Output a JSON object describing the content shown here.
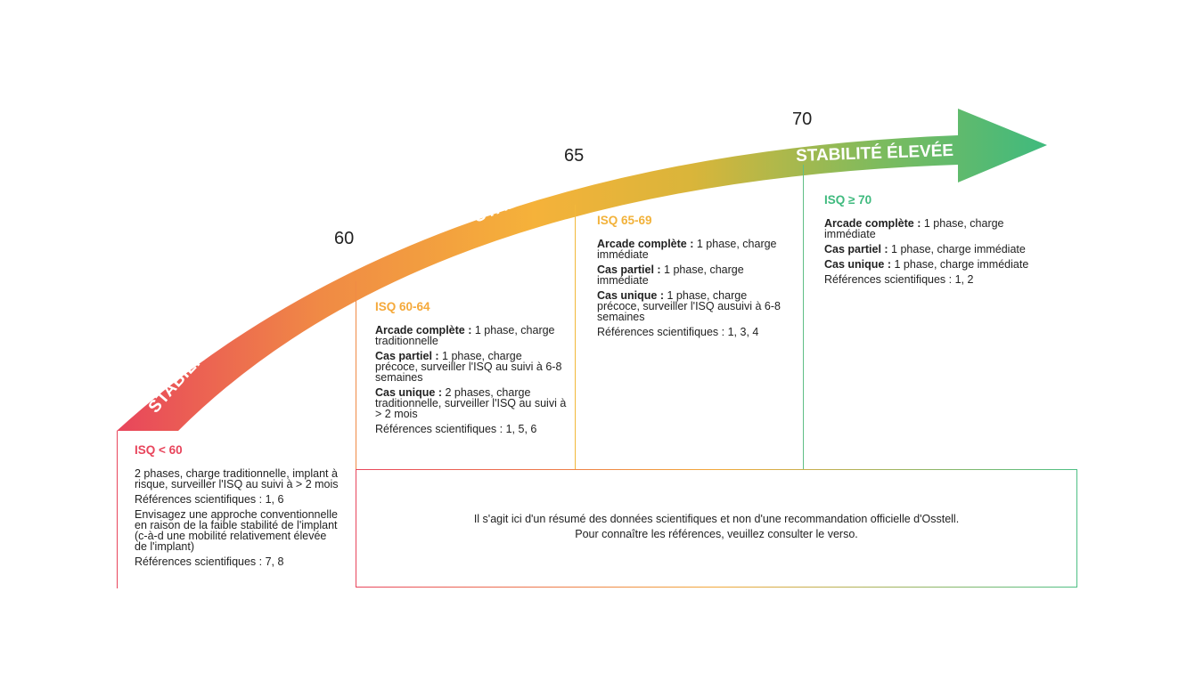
{
  "colors": {
    "red": "#e8455c",
    "orange": "#f5a93a",
    "yellow": "#f2b93a",
    "green": "#3fba7e",
    "text": "#222222"
  },
  "arrow": {
    "label_low": "STABILITÉ FAIBLE",
    "label_mid": "STABILITÉ MOYENNE",
    "label_high": "STABILITÉ ÉLEVÉE"
  },
  "ticks": {
    "t60": "60",
    "t65": "65",
    "t70": "70"
  },
  "col1": {
    "title": "ISQ < 60",
    "line1": "2 phases, charge traditionnelle, implant à risque, surveiller l'ISQ au suivi à > 2 mois",
    "refs1": "Références scientifiques : 1, 6",
    "line2": "Envisagez une approche conventionnelle en raison de la faible stabilité de l'implant (c-à-d une mobilité relativement élevée de l'implant)",
    "refs2": "Références scientifiques : 7, 8"
  },
  "col2": {
    "title": "ISQ 60-64",
    "i1_label": "Arcade complète :",
    "i1_text": "1 phase, charge traditionnelle",
    "i2_label": "Cas partiel :",
    "i2_text": "1 phase, charge précoce, surveiller l'ISQ au suivi à 6-8 semaines",
    "i3_label": "Cas unique :",
    "i3_text": "2 phases, charge traditionnelle, surveiller l'ISQ au suivi à > 2 mois",
    "refs": "Références scientifiques : 1, 5, 6"
  },
  "col3": {
    "title": "ISQ 65-69",
    "i1_label": "Arcade complète :",
    "i1_text": "1 phase, charge immédiate",
    "i2_label": "Cas partiel :",
    "i2_text": "1 phase, charge immédiate",
    "i3_label": "Cas unique :",
    "i3_text": "1 phase, charge précoce, surveiller l'ISQ ausuivi à 6-8 semaines",
    "refs": "Références scientifiques : 1, 3, 4"
  },
  "col4": {
    "title": "ISQ ≥ 70",
    "i1_label": "Arcade complète :",
    "i1_text": "1 phase, charge immédiate",
    "i2_label": "Cas partiel :",
    "i2_text": "1 phase, charge immédiate",
    "i3_label": "Cas unique :",
    "i3_text": "1 phase, charge immédiate",
    "refs": "Références scientifiques : 1, 2"
  },
  "note": {
    "line1": "Il s'agit ici d'un résumé des données scientifiques et non d'une recommandation officielle d'Osstell.",
    "line2": "Pour connaître les références, veuillez consulter le verso."
  }
}
